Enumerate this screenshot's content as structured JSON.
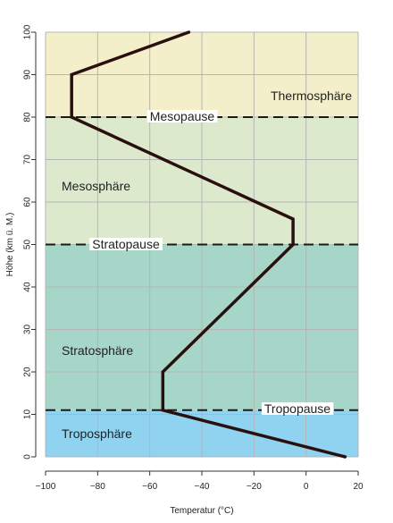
{
  "chart_data": {
    "type": "line",
    "xlabel": "Temperatur (°C)",
    "ylabel": "Höhe (km ü. M.)",
    "xlim": [
      -100,
      20
    ],
    "ylim": [
      0,
      100
    ],
    "x_ticks": [
      -100,
      -80,
      -60,
      -40,
      -20,
      0,
      20
    ],
    "x_tick_labels": [
      "−100",
      "−80",
      "−60",
      "−40",
      "−20",
      "0",
      "20"
    ],
    "y_ticks": [
      0,
      10,
      20,
      30,
      40,
      50,
      60,
      70,
      80,
      90,
      100
    ],
    "y_tick_labels": [
      "0",
      "10",
      "20",
      "30",
      "40",
      "50",
      "60",
      "70",
      "80",
      "90",
      "100"
    ],
    "grid": true,
    "series": [
      {
        "x": [
          15,
          -55,
          -55,
          -5,
          -5,
          -90,
          -90,
          -45
        ],
        "y": [
          0,
          11,
          20,
          50,
          56,
          80,
          90,
          100
        ],
        "color": "#2a0f0f"
      }
    ],
    "layers": [
      {
        "label": "Troposphäre",
        "y_from": 0,
        "y_to": 11,
        "color": "#8fd3f0"
      },
      {
        "label": "Stratosphäre",
        "y_from": 11,
        "y_to": 50,
        "color": "#a5d6c8"
      },
      {
        "label": "Mesosphäre",
        "y_from": 50,
        "y_to": 80,
        "color": "#dde9cd"
      },
      {
        "label": "Thermosphäre",
        "y_from": 80,
        "y_to": 100,
        "color": "#f3efca"
      }
    ],
    "pauses": [
      {
        "label": "Tropopause",
        "y": 11
      },
      {
        "label": "Stratopause",
        "y": 50
      },
      {
        "label": "Mesopause",
        "y": 80
      }
    ]
  }
}
